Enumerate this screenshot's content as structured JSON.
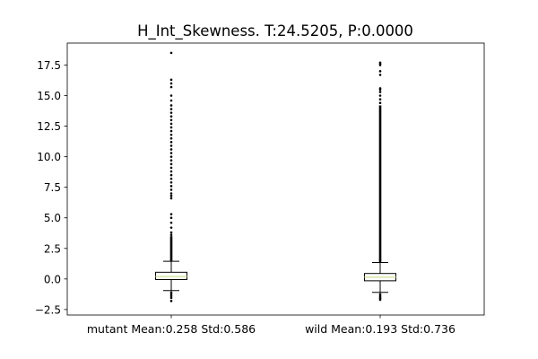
{
  "chart_data": {
    "type": "boxplot",
    "title": "H_Int_Skewness. T:24.5205, P:0.0000",
    "xlabel": "",
    "ylabel": "",
    "ylim": [
      -2.95,
      19.3
    ],
    "yticks": [
      -2.5,
      0.0,
      2.5,
      5.0,
      7.5,
      10.0,
      12.5,
      15.0,
      17.5
    ],
    "ytick_labels": [
      "−2.5",
      "0.0",
      "2.5",
      "5.0",
      "7.5",
      "10.0",
      "12.5",
      "15.0",
      "17.5"
    ],
    "categories": [
      "mutant Mean:0.258 Std:0.586",
      "wild Mean:0.193 Std:0.736"
    ],
    "series": [
      {
        "q1": -0.05,
        "median": 0.2,
        "q3": 0.55,
        "whisker_low": -0.95,
        "whisker_high": 1.45,
        "fliers_high_dense": [
          1.45,
          3.5
        ],
        "fliers_high_sparse": [
          3.6,
          3.8,
          4.2,
          4.6,
          5.0,
          5.3,
          6.6,
          6.8,
          7.0,
          7.3,
          7.6,
          7.9,
          8.2,
          8.5,
          8.8,
          9.1,
          9.4,
          9.7,
          10.0,
          10.3,
          10.6,
          10.9,
          11.2,
          11.5,
          11.8,
          12.1,
          12.4,
          12.7,
          13.0,
          13.3,
          13.6,
          13.9,
          14.2,
          14.6,
          15.0,
          15.7,
          16.0,
          16.3,
          18.5
        ],
        "fliers_low": [
          -1.1,
          -1.25,
          -1.4,
          -1.55,
          -1.8
        ]
      },
      {
        "q1": -0.15,
        "median": 0.15,
        "q3": 0.45,
        "whisker_low": -1.1,
        "whisker_high": 1.35,
        "fliers_high_dense": [
          1.35,
          14.2
        ],
        "fliers_high_sparse": [
          14.4,
          14.7,
          15.0,
          15.3,
          15.5,
          15.6,
          16.7,
          17.0,
          17.5,
          17.6,
          17.7
        ],
        "fliers_low": [
          -1.25,
          -1.4,
          -1.5,
          -1.6,
          -1.7
        ]
      }
    ],
    "colors": {
      "box": "#000000",
      "median": "#d4e6a5",
      "flier": "#000000"
    }
  }
}
